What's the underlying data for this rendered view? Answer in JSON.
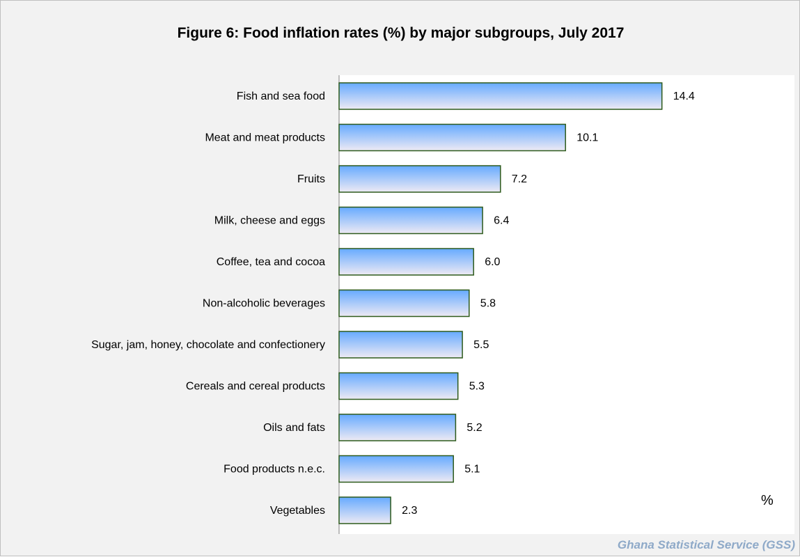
{
  "chart_data": {
    "type": "bar",
    "orientation": "horizontal",
    "title": "Figure 6: Food inflation rates (%) by  major subgroups, July 2017",
    "categories": [
      "Fish and sea food",
      "Meat and meat products",
      "Fruits",
      "Milk, cheese and eggs",
      "Coffee, tea and cocoa",
      "Non-alcoholic beverages",
      "Sugar, jam, honey, chocolate and confectionery",
      "Cereals and cereal products",
      "Oils and fats",
      "Food products n.e.c.",
      "Vegetables"
    ],
    "values": [
      14.4,
      10.1,
      7.2,
      6.4,
      6.0,
      5.8,
      5.5,
      5.3,
      5.2,
      5.1,
      2.3
    ],
    "value_labels": [
      "14.4",
      "10.1",
      "7.2",
      "6.4",
      "6.0",
      "5.8",
      "5.5",
      "5.3",
      "5.2",
      "5.1",
      "2.3"
    ],
    "unit_label": "%",
    "xlim": [
      0,
      20
    ],
    "grid": false,
    "legend": "none",
    "colors": {
      "bar_top": "#66aaff",
      "bar_bottom": "#eeeaf4",
      "bar_border": "#2d5a1b"
    }
  },
  "source": "Ghana Statistical Service (GSS)"
}
